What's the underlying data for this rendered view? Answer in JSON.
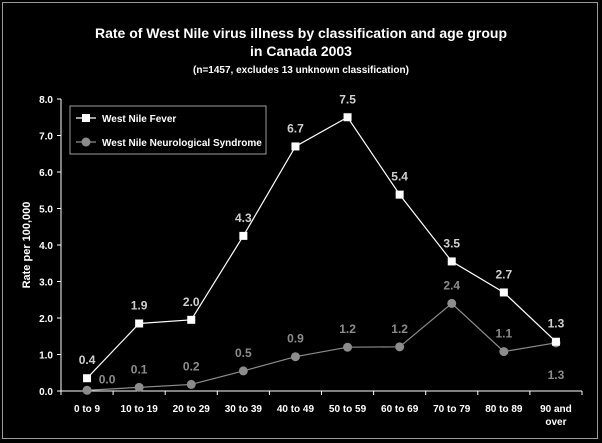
{
  "chart_data": {
    "type": "line",
    "title_line1": "Rate of West Nile virus illness by classification and age group",
    "title_line2": "in Canada 2003",
    "subtitle": "(n=1457, excludes 13 unknown classification)",
    "xlabel": "",
    "ylabel": "Rate per 100,000",
    "ylim": [
      0,
      8
    ],
    "yticks": [
      "0.0",
      "1.0",
      "2.0",
      "3.0",
      "4.0",
      "5.0",
      "6.0",
      "7.0",
      "8.0"
    ],
    "categories": [
      [
        "0 to 9"
      ],
      [
        "10 to 19"
      ],
      [
        "20 to 29"
      ],
      [
        "30 to 39"
      ],
      [
        "40 to 49"
      ],
      [
        "50 to 59"
      ],
      [
        "60 to 69"
      ],
      [
        "70 to 79"
      ],
      [
        "80 to 89"
      ],
      [
        "90 and",
        "over"
      ]
    ],
    "grid": false,
    "legend_position": "top-left",
    "series": [
      {
        "name": "West Nile Fever",
        "marker": "square",
        "color": "#ffffff",
        "label_color": "#d0d0d0",
        "values": [
          0.35,
          1.85,
          1.95,
          4.25,
          6.7,
          7.5,
          5.38,
          3.55,
          2.7,
          1.35
        ],
        "labels": [
          "0.4",
          "1.9",
          "2.0",
          "4.3",
          "6.7",
          "7.5",
          "5.4",
          "3.5",
          "2.7",
          "1.3"
        ]
      },
      {
        "name": "West Nile Neurological Syndrome",
        "marker": "circle",
        "color": "#8c8c8c",
        "label_color": "#8c8c8c",
        "values": [
          0.02,
          0.1,
          0.18,
          0.55,
          0.94,
          1.2,
          1.21,
          2.4,
          1.08,
          1.32
        ],
        "labels": [
          "0.0",
          "0.1",
          "0.2",
          "0.5",
          "0.9",
          "1.2",
          "1.2",
          "2.4",
          "1.1",
          "1.3"
        ]
      }
    ]
  }
}
